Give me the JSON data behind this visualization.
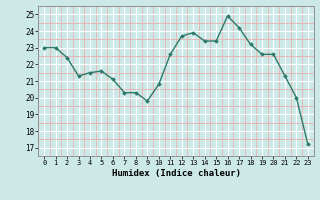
{
  "x": [
    0,
    1,
    2,
    3,
    4,
    5,
    6,
    7,
    8,
    9,
    10,
    11,
    12,
    13,
    14,
    15,
    16,
    17,
    18,
    19,
    20,
    21,
    22,
    23
  ],
  "y": [
    23.0,
    23.0,
    22.4,
    21.3,
    21.5,
    21.6,
    21.1,
    20.3,
    20.3,
    19.8,
    20.8,
    22.6,
    23.7,
    23.9,
    23.4,
    23.4,
    24.9,
    24.2,
    23.2,
    22.6,
    22.6,
    21.3,
    20.0,
    17.2
  ],
  "xlabel": "Humidex (Indice chaleur)",
  "bg_color": "#cce9e8",
  "grid_major_color": "#ffffff",
  "grid_minor_color": "#e8b0b0",
  "line_color": "#2d7a6a",
  "marker_color": "#2d7a6a",
  "ylim": [
    17,
    25
  ],
  "xlim": [
    -0.5,
    23.5
  ],
  "yticks": [
    17,
    18,
    19,
    20,
    21,
    22,
    23,
    24,
    25
  ],
  "xticks": [
    0,
    1,
    2,
    3,
    4,
    5,
    6,
    7,
    8,
    9,
    10,
    11,
    12,
    13,
    14,
    15,
    16,
    17,
    18,
    19,
    20,
    21,
    22,
    23
  ]
}
